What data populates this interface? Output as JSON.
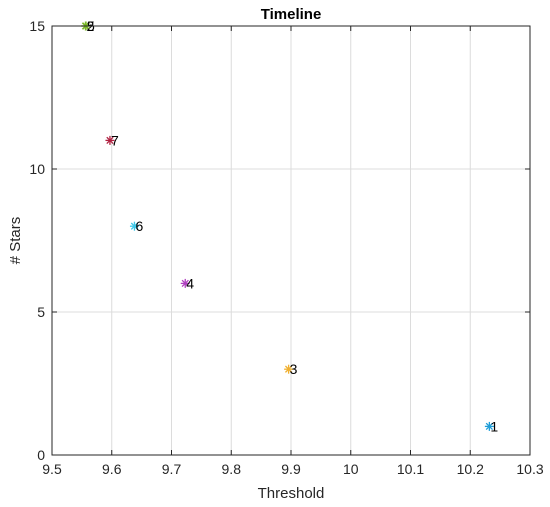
{
  "chart_data": {
    "type": "scatter",
    "title": "Timeline",
    "xlabel": "Threshold",
    "ylabel": "# Stars",
    "xlim": [
      9.5,
      10.3
    ],
    "ylim": [
      0,
      15
    ],
    "xticks": [
      9.5,
      9.6,
      9.7,
      9.8,
      9.9,
      10,
      10.1,
      10.2,
      10.3
    ],
    "xtick_labels": [
      "9.5",
      "9.6",
      "9.7",
      "9.8",
      "9.9",
      "10",
      "10.1",
      "10.2",
      "10.3"
    ],
    "yticks": [
      0,
      5,
      10,
      15
    ],
    "ytick_labels": [
      "0",
      "5",
      "10",
      "15"
    ],
    "grid": true,
    "marker": "asterisk",
    "points": [
      {
        "label": "1",
        "x": 10.232,
        "y": 1,
        "color": "#1f9ed8"
      },
      {
        "label": "2",
        "x": 9.556,
        "y": 15,
        "color": "#7ab828"
      },
      {
        "label": "3",
        "x": 9.896,
        "y": 3,
        "color": "#f0b030"
      },
      {
        "label": "4",
        "x": 9.723,
        "y": 6,
        "color": "#b040c0"
      },
      {
        "label": "5",
        "x": 9.557,
        "y": 15,
        "color": "#7ab828"
      },
      {
        "label": "6",
        "x": 9.638,
        "y": 8,
        "color": "#40c8e8"
      },
      {
        "label": "7",
        "x": 9.597,
        "y": 11,
        "color": "#b02040"
      }
    ]
  }
}
